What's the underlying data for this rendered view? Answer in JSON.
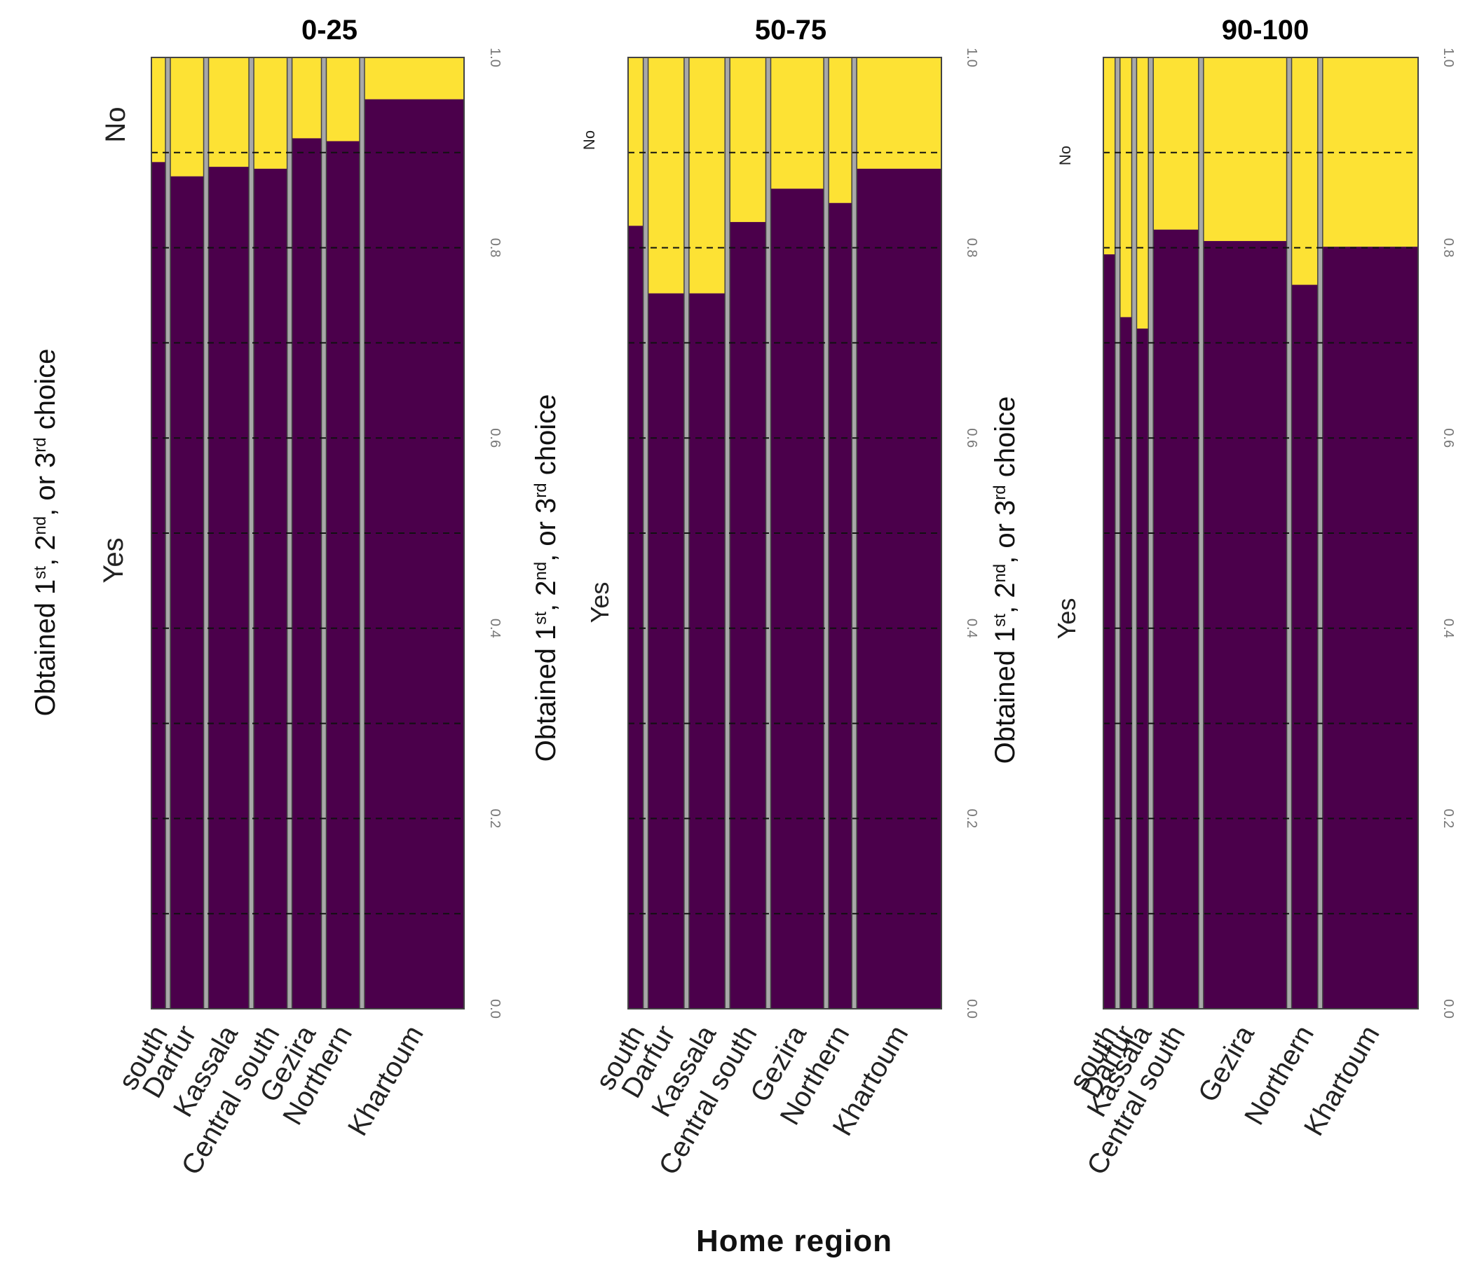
{
  "chart_data": {
    "type": "bar",
    "subtype": "mosaic",
    "xlabel": "Home region",
    "ylabel_main": "Obtained 1",
    "ylabel_sup1": "st",
    "ylabel_sep1": ", 2",
    "ylabel_sup2": "nd",
    "ylabel_sep2": ", or 3",
    "ylabel_sup3": "rd",
    "ylabel_end": " choice",
    "levels": [
      "Yes",
      "No"
    ],
    "colors": {
      "Yes": "#4b004b",
      "No": "#fde234",
      "gap": "#a8a8a8",
      "frame": "#444444"
    },
    "ylim": [
      0,
      1
    ],
    "yticks": [
      "0.0",
      "0.2",
      "0.4",
      "0.6",
      "0.8",
      "1.0"
    ],
    "gridlines": [
      0.1,
      0.2,
      0.3,
      0.4,
      0.5,
      0.6,
      0.7,
      0.8,
      0.9
    ],
    "panels": [
      {
        "title": "0-25",
        "categories": [
          "south",
          "Darfur",
          "Kassala",
          "Central south",
          "Gezira",
          "Northern",
          "Khartoum"
        ],
        "widths": [
          0.032,
          0.076,
          0.092,
          0.076,
          0.067,
          0.076,
          0.227
        ],
        "yes": [
          0.89,
          0.875,
          0.885,
          0.883,
          0.915,
          0.912,
          0.956
        ]
      },
      {
        "title": "50-75",
        "categories": [
          "south",
          "Darfur",
          "Kassala",
          "Central south",
          "Gezira",
          "Northern",
          "Khartoum"
        ],
        "widths": [
          0.032,
          0.076,
          0.076,
          0.076,
          0.112,
          0.049,
          0.179
        ],
        "yes": [
          0.823,
          0.752,
          0.752,
          0.827,
          0.862,
          0.847,
          0.883
        ]
      },
      {
        "title": "90-100",
        "categories": [
          "south",
          "Darfur",
          "Kassala",
          "Central south",
          "Gezira",
          "Northern",
          "Khartoum"
        ],
        "widths": [
          0.022,
          0.022,
          0.022,
          0.085,
          0.156,
          0.049,
          0.179
        ],
        "yes": [
          0.793,
          0.727,
          0.715,
          0.819,
          0.807,
          0.761,
          0.801
        ]
      }
    ]
  }
}
